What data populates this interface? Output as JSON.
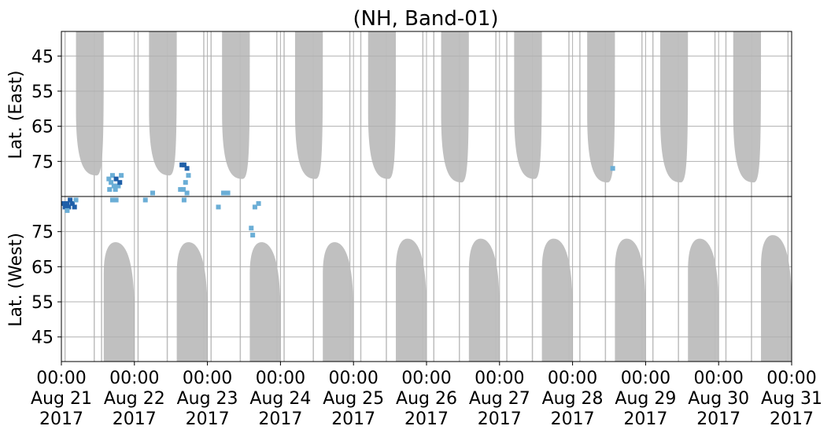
{
  "chart_data": {
    "type": "heatmap",
    "title": "(NH, Band-01)",
    "x_axis": {
      "range": [
        "2017-08-21 00:00",
        "2017-08-31 00:00"
      ],
      "ticks": [
        {
          "time": "00:00",
          "date": "Aug 21",
          "year": "2017"
        },
        {
          "time": "00:00",
          "date": "Aug 22",
          "year": "2017"
        },
        {
          "time": "00:00",
          "date": "Aug 23",
          "year": "2017"
        },
        {
          "time": "00:00",
          "date": "Aug 24",
          "year": "2017"
        },
        {
          "time": "00:00",
          "date": "Aug 25",
          "year": "2017"
        },
        {
          "time": "00:00",
          "date": "Aug 26",
          "year": "2017"
        },
        {
          "time": "00:00",
          "date": "Aug 27",
          "year": "2017"
        },
        {
          "time": "00:00",
          "date": "Aug 28",
          "year": "2017"
        },
        {
          "time": "00:00",
          "date": "Aug 29",
          "year": "2017"
        },
        {
          "time": "00:00",
          "date": "Aug 30",
          "year": "2017"
        },
        {
          "time": "00:00",
          "date": "Aug 31",
          "year": "2017"
        }
      ]
    },
    "panels": [
      {
        "ylabel": "Lat. (East)",
        "orientation": "down",
        "yrange": [
          38,
          85
        ],
        "yticks": [
          45,
          55,
          65,
          75
        ]
      },
      {
        "ylabel": "Lat. (West)",
        "orientation": "up",
        "yrange": [
          38,
          85
        ],
        "yticks": [
          75,
          65,
          55,
          45
        ]
      }
    ],
    "grid": true,
    "colors": {
      "coverage": "#bdbdbd",
      "detection_light": "#6baed6",
      "detection_dark": "#1f5fa8",
      "grid": "#b0b0b0"
    },
    "coverage_east": [
      {
        "day": 0.2,
        "duration": 0.38,
        "min_lat": 79,
        "peak_offset": 0.28
      },
      {
        "day": 1.2,
        "duration": 0.38,
        "min_lat": 79,
        "peak_offset": 0.28
      },
      {
        "day": 2.2,
        "duration": 0.38,
        "min_lat": 80,
        "peak_offset": 0.28
      },
      {
        "day": 3.2,
        "duration": 0.38,
        "min_lat": 80,
        "peak_offset": 0.28
      },
      {
        "day": 4.2,
        "duration": 0.38,
        "min_lat": 80,
        "peak_offset": 0.28
      },
      {
        "day": 5.2,
        "duration": 0.38,
        "min_lat": 81,
        "peak_offset": 0.28
      },
      {
        "day": 6.2,
        "duration": 0.38,
        "min_lat": 80,
        "peak_offset": 0.28
      },
      {
        "day": 7.2,
        "duration": 0.38,
        "min_lat": 81,
        "peak_offset": 0.28
      },
      {
        "day": 8.2,
        "duration": 0.38,
        "min_lat": 81,
        "peak_offset": 0.28
      },
      {
        "day": 9.2,
        "duration": 0.38,
        "min_lat": 81,
        "peak_offset": 0.28
      }
    ],
    "coverage_west": [
      {
        "day": 0.58,
        "duration": 0.42,
        "max_lat": 72,
        "peak_offset": 0.16
      },
      {
        "day": 1.58,
        "duration": 0.42,
        "max_lat": 72,
        "peak_offset": 0.16
      },
      {
        "day": 2.58,
        "duration": 0.42,
        "max_lat": 72,
        "peak_offset": 0.16
      },
      {
        "day": 3.58,
        "duration": 0.42,
        "max_lat": 72,
        "peak_offset": 0.16
      },
      {
        "day": 4.58,
        "duration": 0.42,
        "max_lat": 73,
        "peak_offset": 0.16
      },
      {
        "day": 5.58,
        "duration": 0.42,
        "max_lat": 73,
        "peak_offset": 0.16
      },
      {
        "day": 6.58,
        "duration": 0.42,
        "max_lat": 73,
        "peak_offset": 0.16
      },
      {
        "day": 7.58,
        "duration": 0.42,
        "max_lat": 73,
        "peak_offset": 0.16
      },
      {
        "day": 8.58,
        "duration": 0.42,
        "max_lat": 73,
        "peak_offset": 0.16
      },
      {
        "day": 9.58,
        "duration": 0.42,
        "max_lat": 74,
        "peak_offset": 0.16
      }
    ],
    "coverage_lines": [
      0.05,
      0.45,
      0.55,
      1.05,
      1.45,
      1.95,
      2.05,
      2.45,
      2.95,
      3.05,
      3.45,
      3.95,
      4.1,
      4.45,
      4.95,
      5.1,
      5.45,
      5.95,
      6.1,
      6.45,
      6.95,
      7.1,
      7.45,
      7.95,
      8.1,
      8.45,
      8.95,
      9.1,
      9.45,
      9.95
    ],
    "detections": [
      {
        "day": 0.02,
        "lat": 83,
        "side": "west",
        "level": 2
      },
      {
        "day": 0.05,
        "lat": 82,
        "side": "west",
        "level": 2
      },
      {
        "day": 0.08,
        "lat": 83,
        "side": "west",
        "level": 2
      },
      {
        "day": 0.1,
        "lat": 82,
        "side": "west",
        "level": 2
      },
      {
        "day": 0.12,
        "lat": 84,
        "side": "west",
        "level": 2
      },
      {
        "day": 0.15,
        "lat": 83,
        "side": "west",
        "level": 2
      },
      {
        "day": 0.18,
        "lat": 82,
        "side": "west",
        "level": 2
      },
      {
        "day": 0.08,
        "lat": 81,
        "side": "west",
        "level": 1
      },
      {
        "day": 0.2,
        "lat": 84,
        "side": "west",
        "level": 1
      },
      {
        "day": 0.65,
        "lat": 80,
        "side": "east",
        "level": 1
      },
      {
        "day": 0.68,
        "lat": 81,
        "side": "east",
        "level": 1
      },
      {
        "day": 0.7,
        "lat": 79,
        "side": "east",
        "level": 1
      },
      {
        "day": 0.72,
        "lat": 82,
        "side": "east",
        "level": 1
      },
      {
        "day": 0.75,
        "lat": 80,
        "side": "east",
        "level": 2
      },
      {
        "day": 0.78,
        "lat": 82,
        "side": "east",
        "level": 1
      },
      {
        "day": 0.8,
        "lat": 81,
        "side": "east",
        "level": 2
      },
      {
        "day": 0.82,
        "lat": 79,
        "side": "east",
        "level": 1
      },
      {
        "day": 0.66,
        "lat": 83,
        "side": "east",
        "level": 1
      },
      {
        "day": 0.74,
        "lat": 83,
        "side": "east",
        "level": 1
      },
      {
        "day": 0.7,
        "lat": 84,
        "side": "west",
        "level": 1
      },
      {
        "day": 0.75,
        "lat": 84,
        "side": "west",
        "level": 1
      },
      {
        "day": 1.15,
        "lat": 84,
        "side": "west",
        "level": 1
      },
      {
        "day": 1.25,
        "lat": 84,
        "side": "east",
        "level": 1
      },
      {
        "day": 1.65,
        "lat": 76,
        "side": "east",
        "level": 2
      },
      {
        "day": 1.68,
        "lat": 76,
        "side": "east",
        "level": 2
      },
      {
        "day": 1.72,
        "lat": 77,
        "side": "east",
        "level": 2
      },
      {
        "day": 1.74,
        "lat": 79,
        "side": "east",
        "level": 1
      },
      {
        "day": 1.63,
        "lat": 83,
        "side": "east",
        "level": 1
      },
      {
        "day": 1.67,
        "lat": 83,
        "side": "east",
        "level": 1
      },
      {
        "day": 1.72,
        "lat": 84,
        "side": "east",
        "level": 1
      },
      {
        "day": 1.7,
        "lat": 81,
        "side": "east",
        "level": 1
      },
      {
        "day": 1.68,
        "lat": 84,
        "side": "west",
        "level": 1
      },
      {
        "day": 2.15,
        "lat": 82,
        "side": "west",
        "level": 1
      },
      {
        "day": 2.22,
        "lat": 84,
        "side": "east",
        "level": 1
      },
      {
        "day": 2.28,
        "lat": 84,
        "side": "east",
        "level": 1
      },
      {
        "day": 2.65,
        "lat": 82,
        "side": "west",
        "level": 1
      },
      {
        "day": 2.7,
        "lat": 83,
        "side": "west",
        "level": 1
      },
      {
        "day": 2.6,
        "lat": 76,
        "side": "west",
        "level": 1
      },
      {
        "day": 2.62,
        "lat": 74,
        "side": "west",
        "level": 1
      },
      {
        "day": 7.55,
        "lat": 77,
        "side": "east",
        "level": 1
      }
    ]
  }
}
